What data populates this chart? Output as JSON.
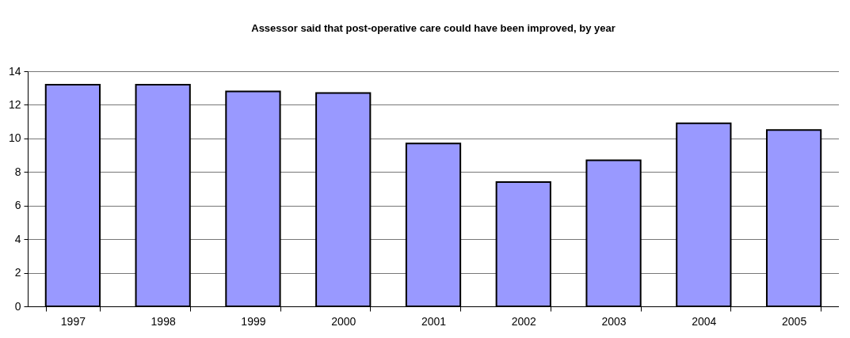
{
  "chart_data": {
    "type": "bar",
    "title": "Assessor said that post-operative care could have been improved, by year",
    "categories": [
      "1997",
      "1998",
      "1999",
      "2000",
      "2001",
      "2002",
      "2003",
      "2004",
      "2005"
    ],
    "values": [
      13.2,
      13.2,
      12.8,
      12.7,
      9.7,
      7.4,
      8.7,
      10.9,
      10.5
    ],
    "color": "#9999ff",
    "ylim": [
      0,
      14
    ],
    "yticks": [
      0,
      2,
      4,
      6,
      8,
      10,
      12,
      14
    ],
    "grid": "y"
  }
}
